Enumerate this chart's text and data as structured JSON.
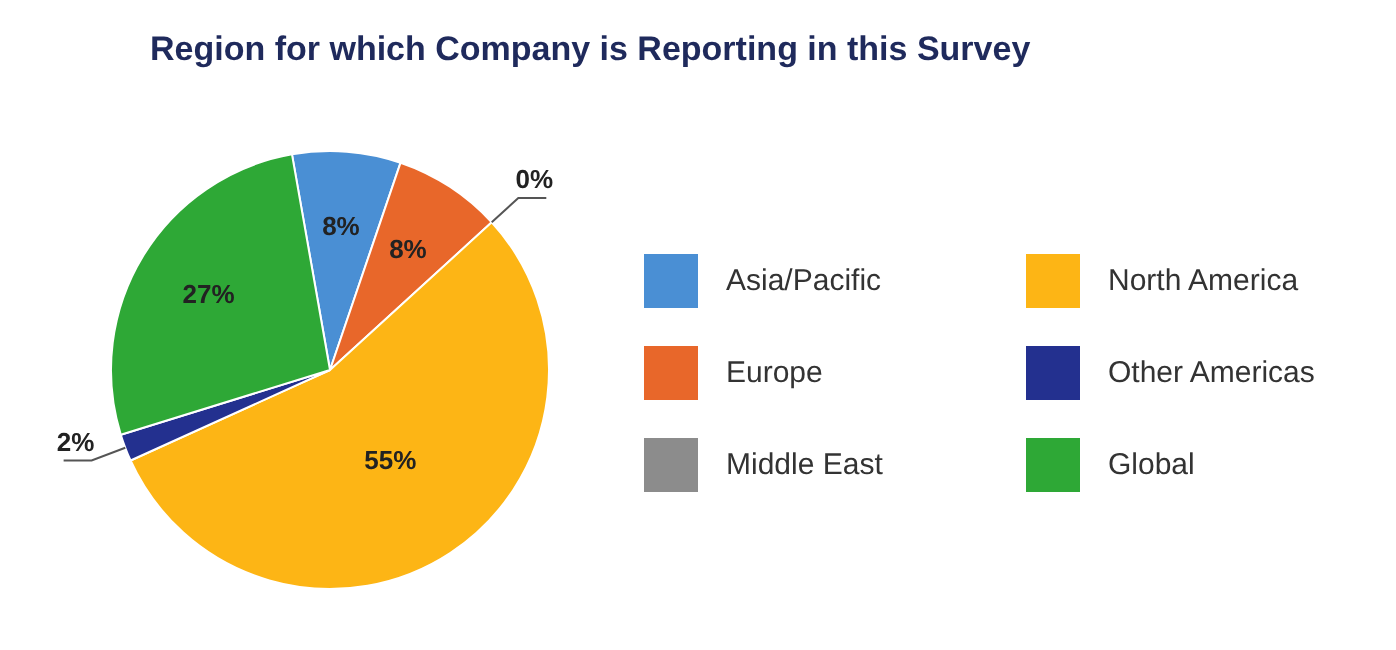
{
  "chart_data": {
    "type": "pie",
    "title": "Region for which Company is Reporting in this Survey",
    "categories": [
      "Asia/Pacific",
      "Europe",
      "Middle East",
      "North America",
      "Other Americas",
      "Global"
    ],
    "values": [
      8,
      8,
      0,
      55,
      2,
      27
    ],
    "colors": [
      "#4a8fd4",
      "#e8672a",
      "#8c8c8c",
      "#fdb515",
      "#23308f",
      "#2ea836"
    ],
    "value_labels": [
      "8%",
      "8%",
      "0%",
      "55%",
      "2%",
      "27%"
    ],
    "legend": "right"
  }
}
